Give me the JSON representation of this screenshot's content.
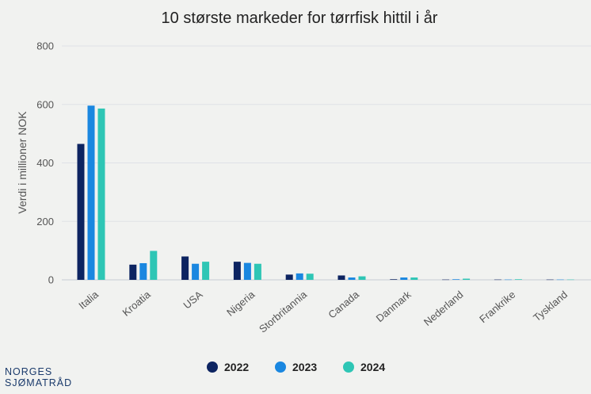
{
  "chart_data": {
    "type": "bar",
    "title": "10 største markeder for tørrfisk hittil i år",
    "ylabel": "Verdi i millioner NOK",
    "xlabel": "",
    "ylim": [
      0,
      800
    ],
    "yticks": [
      0,
      200,
      400,
      600,
      800
    ],
    "grid": true,
    "legend_position": "bottom",
    "categories": [
      "Italia",
      "Kroatia",
      "USA",
      "Nigeria",
      "Storbritannia",
      "Canada",
      "Danmark",
      "Nederland",
      "Frankrike",
      "Tyskland"
    ],
    "series": [
      {
        "name": "2022",
        "color": "#0d2461",
        "values": [
          465,
          52,
          80,
          62,
          18,
          15,
          2,
          1,
          1,
          1
        ]
      },
      {
        "name": "2023",
        "color": "#1a87e0",
        "values": [
          596,
          57,
          55,
          58,
          22,
          8,
          8,
          2,
          1,
          1
        ]
      },
      {
        "name": "2024",
        "color": "#2ec6b5",
        "values": [
          586,
          99,
          62,
          55,
          21,
          12,
          8,
          4,
          2,
          1
        ]
      }
    ]
  },
  "brand": {
    "line1": "NORGES",
    "line2": "SJØMATRÅD"
  }
}
